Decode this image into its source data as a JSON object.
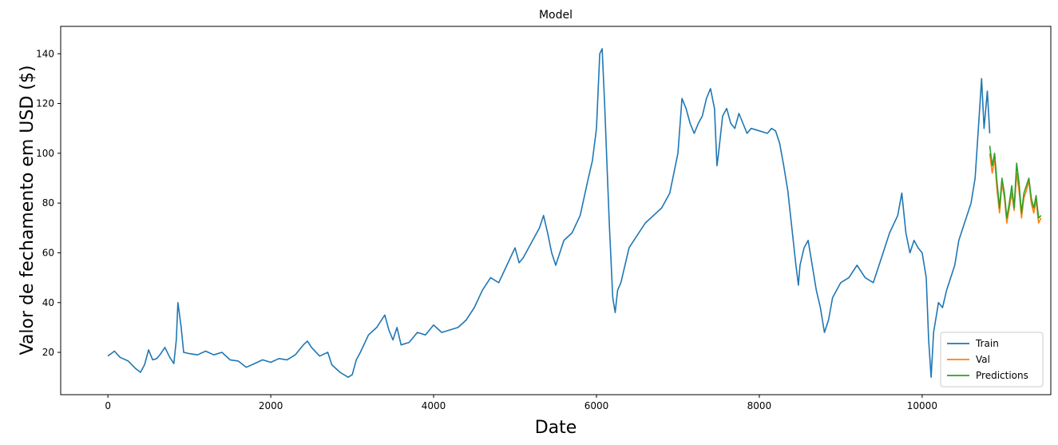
{
  "chart_data": {
    "type": "line",
    "title": "Model",
    "xlabel": "Date",
    "ylabel": "Valor de fechamento em USD ($)",
    "xlim": [
      -580,
      11580
    ],
    "ylim": [
      3,
      151
    ],
    "x_ticks": [
      0,
      2000,
      4000,
      6000,
      8000,
      10000
    ],
    "y_ticks": [
      20,
      40,
      60,
      80,
      100,
      120,
      140
    ],
    "grid": false,
    "legend_position": "lower right",
    "series": [
      {
        "name": "Train",
        "color": "#1f77b4",
        "points": [
          [
            0,
            18.5
          ],
          [
            40,
            19.5
          ],
          [
            80,
            20.5
          ],
          [
            150,
            18.0
          ],
          [
            250,
            16.5
          ],
          [
            340,
            13.5
          ],
          [
            400,
            12.0
          ],
          [
            450,
            15.0
          ],
          [
            500,
            21.0
          ],
          [
            550,
            17.0
          ],
          [
            600,
            17.5
          ],
          [
            650,
            19.5
          ],
          [
            700,
            22.0
          ],
          [
            760,
            18.0
          ],
          [
            810,
            15.5
          ],
          [
            840,
            25.0
          ],
          [
            860,
            40.0
          ],
          [
            880,
            35.0
          ],
          [
            900,
            30.0
          ],
          [
            930,
            20.0
          ],
          [
            1000,
            19.5
          ],
          [
            1100,
            19.0
          ],
          [
            1200,
            20.5
          ],
          [
            1300,
            19.0
          ],
          [
            1400,
            20.0
          ],
          [
            1500,
            17.0
          ],
          [
            1600,
            16.5
          ],
          [
            1700,
            14.0
          ],
          [
            1800,
            15.5
          ],
          [
            1900,
            17.0
          ],
          [
            2000,
            16.0
          ],
          [
            2100,
            17.5
          ],
          [
            2200,
            17.0
          ],
          [
            2300,
            19.0
          ],
          [
            2400,
            23.0
          ],
          [
            2450,
            24.5
          ],
          [
            2500,
            22.0
          ],
          [
            2600,
            18.5
          ],
          [
            2700,
            20.0
          ],
          [
            2750,
            15.0
          ],
          [
            2850,
            12.0
          ],
          [
            2950,
            10.0
          ],
          [
            3000,
            11.0
          ],
          [
            3050,
            17.0
          ],
          [
            3100,
            20.0
          ],
          [
            3200,
            27.0
          ],
          [
            3300,
            30.0
          ],
          [
            3400,
            35.0
          ],
          [
            3450,
            29.0
          ],
          [
            3500,
            25.0
          ],
          [
            3550,
            30.0
          ],
          [
            3600,
            23.0
          ],
          [
            3700,
            24.0
          ],
          [
            3800,
            28.0
          ],
          [
            3900,
            27.0
          ],
          [
            4000,
            31.0
          ],
          [
            4100,
            28.0
          ],
          [
            4200,
            29.0
          ],
          [
            4300,
            30.0
          ],
          [
            4400,
            33.0
          ],
          [
            4500,
            38.0
          ],
          [
            4600,
            45.0
          ],
          [
            4700,
            50.0
          ],
          [
            4800,
            48.0
          ],
          [
            4900,
            55.0
          ],
          [
            5000,
            62.0
          ],
          [
            5050,
            56.0
          ],
          [
            5100,
            58.0
          ],
          [
            5200,
            64.0
          ],
          [
            5300,
            70.0
          ],
          [
            5350,
            75.0
          ],
          [
            5400,
            68.0
          ],
          [
            5450,
            60.0
          ],
          [
            5500,
            55.0
          ],
          [
            5600,
            65.0
          ],
          [
            5700,
            68.0
          ],
          [
            5800,
            75.0
          ],
          [
            5900,
            90.0
          ],
          [
            5950,
            97.0
          ],
          [
            6000,
            110.0
          ],
          [
            6040,
            140.0
          ],
          [
            6070,
            142.0
          ],
          [
            6100,
            120.0
          ],
          [
            6130,
            95.0
          ],
          [
            6160,
            70.0
          ],
          [
            6200,
            42.0
          ],
          [
            6230,
            36.0
          ],
          [
            6260,
            45.0
          ],
          [
            6300,
            48.0
          ],
          [
            6400,
            62.0
          ],
          [
            6500,
            67.0
          ],
          [
            6600,
            72.0
          ],
          [
            6700,
            75.0
          ],
          [
            6800,
            78.0
          ],
          [
            6900,
            84.0
          ],
          [
            7000,
            100.0
          ],
          [
            7050,
            122.0
          ],
          [
            7100,
            118.0
          ],
          [
            7150,
            112.0
          ],
          [
            7200,
            108.0
          ],
          [
            7250,
            112.0
          ],
          [
            7300,
            115.0
          ],
          [
            7350,
            122.0
          ],
          [
            7400,
            126.0
          ],
          [
            7450,
            118.0
          ],
          [
            7480,
            95.0
          ],
          [
            7500,
            100.0
          ],
          [
            7550,
            115.0
          ],
          [
            7600,
            118.0
          ],
          [
            7650,
            112.0
          ],
          [
            7700,
            110.0
          ],
          [
            7750,
            116.0
          ],
          [
            7800,
            112.0
          ],
          [
            7850,
            108.0
          ],
          [
            7900,
            110.0
          ],
          [
            8000,
            109.0
          ],
          [
            8100,
            108.0
          ],
          [
            8150,
            110.0
          ],
          [
            8200,
            109.0
          ],
          [
            8250,
            104.0
          ],
          [
            8300,
            95.0
          ],
          [
            8350,
            85.0
          ],
          [
            8400,
            70.0
          ],
          [
            8450,
            55.0
          ],
          [
            8480,
            47.0
          ],
          [
            8500,
            55.0
          ],
          [
            8550,
            62.0
          ],
          [
            8600,
            65.0
          ],
          [
            8650,
            55.0
          ],
          [
            8700,
            45.0
          ],
          [
            8750,
            38.0
          ],
          [
            8800,
            28.0
          ],
          [
            8850,
            33.0
          ],
          [
            8900,
            42.0
          ],
          [
            9000,
            48.0
          ],
          [
            9100,
            50.0
          ],
          [
            9200,
            55.0
          ],
          [
            9300,
            50.0
          ],
          [
            9400,
            48.0
          ],
          [
            9500,
            58.0
          ],
          [
            9600,
            68.0
          ],
          [
            9700,
            75.0
          ],
          [
            9750,
            84.0
          ],
          [
            9800,
            68.0
          ],
          [
            9850,
            60.0
          ],
          [
            9900,
            65.0
          ],
          [
            9950,
            62.0
          ],
          [
            10000,
            60.0
          ],
          [
            10050,
            50.0
          ],
          [
            10080,
            25.0
          ],
          [
            10110,
            10.0
          ],
          [
            10140,
            28.0
          ],
          [
            10200,
            40.0
          ],
          [
            10250,
            38.0
          ],
          [
            10300,
            45.0
          ],
          [
            10400,
            55.0
          ],
          [
            10450,
            65.0
          ],
          [
            10500,
            70.0
          ],
          [
            10550,
            75.0
          ],
          [
            10600,
            80.0
          ],
          [
            10650,
            90.0
          ],
          [
            10700,
            115.0
          ],
          [
            10730,
            130.0
          ],
          [
            10760,
            110.0
          ],
          [
            10800,
            125.0
          ],
          [
            10830,
            108.0
          ]
        ]
      },
      {
        "name": "Val",
        "color": "#ff7f0e",
        "points": [
          [
            10830,
            100.0
          ],
          [
            10860,
            92.0
          ],
          [
            10890,
            98.0
          ],
          [
            10920,
            85.0
          ],
          [
            10950,
            76.0
          ],
          [
            10980,
            88.0
          ],
          [
            11010,
            82.0
          ],
          [
            11040,
            72.0
          ],
          [
            11070,
            78.0
          ],
          [
            11100,
            84.0
          ],
          [
            11130,
            77.0
          ],
          [
            11160,
            92.0
          ],
          [
            11190,
            85.0
          ],
          [
            11220,
            74.0
          ],
          [
            11250,
            82.0
          ],
          [
            11280,
            85.0
          ],
          [
            11310,
            89.0
          ],
          [
            11340,
            80.0
          ],
          [
            11370,
            76.0
          ],
          [
            11400,
            81.0
          ],
          [
            11430,
            72.0
          ],
          [
            11460,
            74.0
          ]
        ]
      },
      {
        "name": "Predictions",
        "color": "#2ca02c",
        "points": [
          [
            10830,
            103.0
          ],
          [
            10860,
            95.0
          ],
          [
            10890,
            100.0
          ],
          [
            10920,
            88.0
          ],
          [
            10950,
            78.0
          ],
          [
            10980,
            90.0
          ],
          [
            11010,
            84.0
          ],
          [
            11040,
            74.0
          ],
          [
            11070,
            80.0
          ],
          [
            11100,
            87.0
          ],
          [
            11130,
            78.0
          ],
          [
            11160,
            96.0
          ],
          [
            11190,
            88.0
          ],
          [
            11220,
            76.0
          ],
          [
            11250,
            84.0
          ],
          [
            11280,
            87.0
          ],
          [
            11310,
            90.0
          ],
          [
            11340,
            82.0
          ],
          [
            11370,
            78.0
          ],
          [
            11400,
            83.0
          ],
          [
            11430,
            74.0
          ],
          [
            11460,
            75.0
          ]
        ]
      }
    ]
  }
}
